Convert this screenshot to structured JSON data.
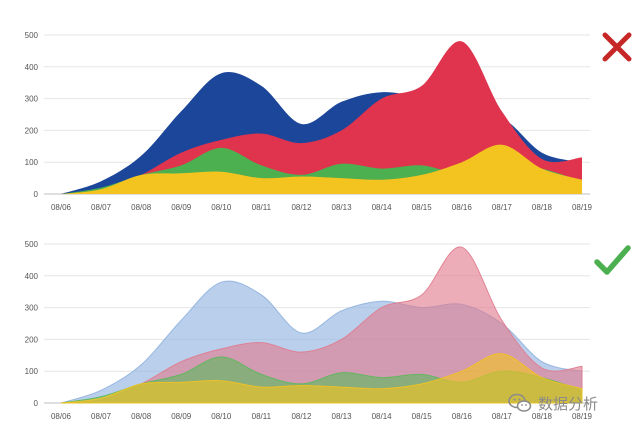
{
  "chart_data": [
    {
      "type": "area",
      "variant": "stacked-opaque",
      "verdict_icon": "cross-icon",
      "verdict_color": "#c62828",
      "x": [
        "08/06",
        "08/07",
        "08/08",
        "08/09",
        "08/10",
        "08/11",
        "08/12",
        "08/13",
        "08/14",
        "08/15",
        "08/16",
        "08/17",
        "08/18",
        "08/19"
      ],
      "x_tick_labels": [
        "08/06",
        "08/07",
        "08/08",
        "08/09",
        "08/10",
        "08/11",
        "08/12",
        "08/13",
        "08/14",
        "08/15",
        "08/16",
        "08/17",
        "08/18",
        "08/19"
      ],
      "y_tick_labels": [
        "0",
        "100",
        "200",
        "300",
        "400",
        "500"
      ],
      "ylim": [
        0,
        500
      ],
      "grid": true,
      "series": [
        {
          "color": "#1c469a",
          "values": [
            0,
            40,
            120,
            260,
            380,
            340,
            220,
            290,
            320,
            300,
            250,
            240,
            130,
            100
          ]
        },
        {
          "color": "#e0344e",
          "values": [
            0,
            10,
            60,
            130,
            170,
            190,
            160,
            200,
            300,
            340,
            480,
            260,
            110,
            115
          ]
        },
        {
          "color": "#4caf50",
          "values": [
            0,
            20,
            60,
            90,
            145,
            90,
            60,
            95,
            80,
            90,
            65,
            100,
            80,
            40
          ]
        },
        {
          "color": "#f3c320",
          "values": [
            0,
            15,
            60,
            65,
            70,
            50,
            55,
            50,
            45,
            60,
            100,
            155,
            80,
            45
          ]
        }
      ]
    },
    {
      "type": "area",
      "variant": "overlapping-transparent",
      "verdict_icon": "check-icon",
      "verdict_color": "#4caf50",
      "x": [
        "08/06",
        "08/07",
        "08/08",
        "08/09",
        "08/10",
        "08/11",
        "08/12",
        "08/13",
        "08/14",
        "08/15",
        "08/16",
        "08/17",
        "08/18",
        "08/19"
      ],
      "x_tick_labels": [
        "08/06",
        "08/07",
        "08/08",
        "08/09",
        "08/10",
        "08/11",
        "08/12",
        "08/13",
        "08/14",
        "08/15",
        "08/16",
        "08/17",
        "08/18",
        "08/19"
      ],
      "y_tick_labels": [
        "0",
        "100",
        "200",
        "300",
        "400",
        "500"
      ],
      "ylim": [
        0,
        500
      ],
      "grid": true,
      "series": [
        {
          "color": "#8fb1de",
          "values": [
            0,
            40,
            120,
            260,
            380,
            340,
            220,
            290,
            320,
            300,
            310,
            250,
            130,
            100
          ]
        },
        {
          "color": "#e07b8e",
          "values": [
            0,
            10,
            60,
            130,
            170,
            190,
            160,
            200,
            300,
            340,
            490,
            260,
            110,
            115
          ]
        },
        {
          "color": "#5cb85c",
          "values": [
            0,
            20,
            60,
            90,
            145,
            90,
            60,
            95,
            80,
            90,
            65,
            100,
            80,
            40
          ]
        },
        {
          "color": "#f3c320",
          "values": [
            0,
            15,
            60,
            65,
            70,
            50,
            55,
            50,
            45,
            60,
            100,
            155,
            80,
            45
          ]
        }
      ]
    }
  ],
  "watermark": {
    "text": "数据分析",
    "icon": "wechat-icon"
  }
}
